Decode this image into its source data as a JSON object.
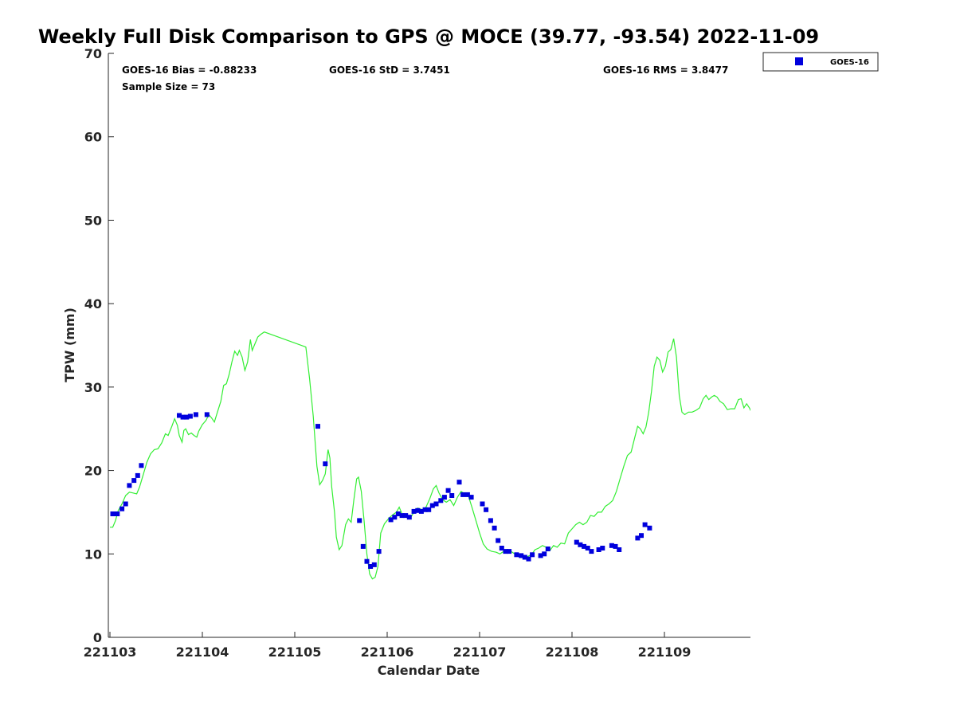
{
  "chart_data": {
    "type": "scatter",
    "title": "Weekly Full Disk Comparison to GPS @ MOCE (39.77, -93.54) 2022-11-09",
    "xlabel": "Calendar Date",
    "ylabel": "TPW (mm)",
    "x_tick_labels": [
      "221103",
      "221104",
      "221105",
      "221106",
      "221107",
      "221108",
      "221109"
    ],
    "y_tick_labels": [
      "0",
      "10",
      "20",
      "30",
      "40",
      "50",
      "60",
      "70"
    ],
    "y_ticks": [
      0,
      10,
      20,
      30,
      40,
      50,
      60,
      70
    ],
    "xlim_days": [
      0,
      6.95
    ],
    "ylim": [
      0,
      70
    ],
    "grid": false,
    "legend_position": "top-right outside",
    "stats": {
      "bias": "GOES-16 Bias = -0.88233",
      "std": "GOES-16 StD = 3.7451",
      "rms": "GOES-16 RMS = 3.8477",
      "sample": "Sample Size = 73"
    },
    "series": [
      {
        "name": "GOES-16",
        "kind": "scatter",
        "marker": "square",
        "color": "#0000dd",
        "points": [
          [
            0.03,
            14.8
          ],
          [
            0.08,
            14.8
          ],
          [
            0.13,
            15.4
          ],
          [
            0.17,
            16.0
          ],
          [
            0.21,
            18.2
          ],
          [
            0.26,
            18.8
          ],
          [
            0.3,
            19.4
          ],
          [
            0.34,
            20.6
          ],
          [
            0.75,
            26.6
          ],
          [
            0.79,
            26.4
          ],
          [
            0.83,
            26.4
          ],
          [
            0.87,
            26.5
          ],
          [
            0.93,
            26.7
          ],
          [
            1.05,
            26.7
          ],
          [
            2.25,
            25.3
          ],
          [
            2.33,
            20.8
          ],
          [
            2.7,
            14.0
          ],
          [
            2.74,
            10.9
          ],
          [
            2.78,
            9.1
          ],
          [
            2.82,
            8.5
          ],
          [
            2.86,
            8.7
          ],
          [
            2.91,
            10.3
          ],
          [
            3.04,
            14.1
          ],
          [
            3.08,
            14.4
          ],
          [
            3.12,
            14.8
          ],
          [
            3.16,
            14.6
          ],
          [
            3.2,
            14.6
          ],
          [
            3.24,
            14.4
          ],
          [
            3.29,
            15.1
          ],
          [
            3.33,
            15.2
          ],
          [
            3.37,
            15.1
          ],
          [
            3.41,
            15.3
          ],
          [
            3.45,
            15.3
          ],
          [
            3.49,
            15.8
          ],
          [
            3.53,
            16.0
          ],
          [
            3.58,
            16.4
          ],
          [
            3.62,
            16.8
          ],
          [
            3.66,
            17.6
          ],
          [
            3.7,
            17.0
          ],
          [
            3.78,
            18.6
          ],
          [
            3.82,
            17.1
          ],
          [
            3.87,
            17.1
          ],
          [
            3.91,
            16.8
          ],
          [
            4.03,
            16.0
          ],
          [
            4.07,
            15.3
          ],
          [
            4.12,
            14.0
          ],
          [
            4.16,
            13.1
          ],
          [
            4.2,
            11.6
          ],
          [
            4.24,
            10.7
          ],
          [
            4.28,
            10.3
          ],
          [
            4.32,
            10.3
          ],
          [
            4.4,
            9.9
          ],
          [
            4.45,
            9.8
          ],
          [
            4.49,
            9.6
          ],
          [
            4.53,
            9.4
          ],
          [
            4.57,
            9.9
          ],
          [
            4.66,
            9.8
          ],
          [
            4.7,
            10.0
          ],
          [
            4.74,
            10.6
          ],
          [
            5.05,
            11.4
          ],
          [
            5.09,
            11.1
          ],
          [
            5.13,
            10.9
          ],
          [
            5.17,
            10.7
          ],
          [
            5.21,
            10.3
          ],
          [
            5.29,
            10.5
          ],
          [
            5.33,
            10.7
          ],
          [
            5.43,
            11.0
          ],
          [
            5.47,
            10.9
          ],
          [
            5.51,
            10.5
          ],
          [
            5.71,
            11.9
          ],
          [
            5.75,
            12.2
          ],
          [
            5.79,
            13.5
          ],
          [
            5.84,
            13.1
          ]
        ]
      },
      {
        "name": "",
        "kind": "line",
        "color": "#33ee33",
        "points": [
          [
            0.0,
            13.2
          ],
          [
            0.03,
            13.2
          ],
          [
            0.06,
            14.0
          ],
          [
            0.09,
            15.2
          ],
          [
            0.13,
            16.0
          ],
          [
            0.17,
            17.0
          ],
          [
            0.21,
            17.4
          ],
          [
            0.25,
            17.3
          ],
          [
            0.29,
            17.2
          ],
          [
            0.32,
            18.0
          ],
          [
            0.36,
            19.5
          ],
          [
            0.4,
            21.0
          ],
          [
            0.44,
            22.0
          ],
          [
            0.48,
            22.5
          ],
          [
            0.52,
            22.6
          ],
          [
            0.56,
            23.3
          ],
          [
            0.6,
            24.4
          ],
          [
            0.63,
            24.2
          ],
          [
            0.67,
            25.3
          ],
          [
            0.7,
            26.2
          ],
          [
            0.73,
            25.4
          ],
          [
            0.75,
            24.2
          ],
          [
            0.78,
            23.4
          ],
          [
            0.8,
            24.8
          ],
          [
            0.82,
            25.0
          ],
          [
            0.85,
            24.3
          ],
          [
            0.88,
            24.5
          ],
          [
            0.91,
            24.2
          ],
          [
            0.94,
            24.0
          ],
          [
            0.96,
            24.7
          ],
          [
            1.0,
            25.5
          ],
          [
            1.04,
            26.0
          ],
          [
            1.07,
            26.7
          ],
          [
            1.1,
            26.3
          ],
          [
            1.13,
            25.8
          ],
          [
            1.16,
            26.9
          ],
          [
            1.2,
            28.3
          ],
          [
            1.23,
            30.2
          ],
          [
            1.26,
            30.4
          ],
          [
            1.29,
            31.5
          ],
          [
            1.32,
            33.0
          ],
          [
            1.35,
            34.3
          ],
          [
            1.38,
            33.8
          ],
          [
            1.4,
            34.4
          ],
          [
            1.43,
            33.6
          ],
          [
            1.46,
            32.0
          ],
          [
            1.49,
            33.0
          ],
          [
            1.52,
            35.7
          ],
          [
            1.54,
            34.4
          ],
          [
            1.57,
            35.2
          ],
          [
            1.6,
            36.0
          ],
          [
            1.63,
            36.3
          ],
          [
            1.67,
            36.6
          ],
          [
            2.12,
            34.8
          ],
          [
            2.16,
            31.0
          ],
          [
            2.2,
            26.5
          ],
          [
            2.24,
            20.5
          ],
          [
            2.27,
            18.3
          ],
          [
            2.3,
            18.8
          ],
          [
            2.33,
            19.6
          ],
          [
            2.36,
            22.5
          ],
          [
            2.38,
            21.5
          ],
          [
            2.4,
            18.0
          ],
          [
            2.43,
            15.0
          ],
          [
            2.45,
            12.0
          ],
          [
            2.48,
            10.5
          ],
          [
            2.51,
            11.0
          ],
          [
            2.55,
            13.5
          ],
          [
            2.58,
            14.2
          ],
          [
            2.61,
            13.8
          ],
          [
            2.64,
            16.5
          ],
          [
            2.67,
            19.0
          ],
          [
            2.69,
            19.2
          ],
          [
            2.72,
            17.5
          ],
          [
            2.75,
            14.0
          ],
          [
            2.78,
            10.0
          ],
          [
            2.81,
            7.6
          ],
          [
            2.84,
            7.0
          ],
          [
            2.87,
            7.2
          ],
          [
            2.9,
            8.5
          ],
          [
            2.93,
            12.5
          ],
          [
            2.97,
            13.6
          ],
          [
            3.02,
            14.3
          ],
          [
            3.06,
            14.7
          ],
          [
            3.1,
            15.0
          ],
          [
            3.13,
            15.6
          ],
          [
            3.16,
            14.8
          ],
          [
            3.2,
            14.4
          ],
          [
            3.25,
            14.3
          ],
          [
            3.29,
            15.0
          ],
          [
            3.33,
            15.5
          ],
          [
            3.38,
            15.3
          ],
          [
            3.42,
            15.6
          ],
          [
            3.46,
            16.6
          ],
          [
            3.5,
            17.8
          ],
          [
            3.53,
            18.2
          ],
          [
            3.56,
            17.3
          ],
          [
            3.6,
            16.5
          ],
          [
            3.64,
            16.2
          ],
          [
            3.68,
            16.5
          ],
          [
            3.72,
            15.8
          ],
          [
            3.76,
            16.8
          ],
          [
            3.8,
            17.5
          ],
          [
            3.84,
            17.2
          ],
          [
            3.88,
            16.9
          ],
          [
            3.92,
            15.5
          ],
          [
            3.96,
            14.0
          ],
          [
            4.0,
            12.5
          ],
          [
            4.04,
            11.2
          ],
          [
            4.08,
            10.6
          ],
          [
            4.13,
            10.3
          ],
          [
            4.18,
            10.2
          ],
          [
            4.22,
            10.0
          ],
          [
            4.26,
            10.3
          ],
          [
            4.3,
            10.5
          ],
          [
            4.34,
            10.3
          ],
          [
            4.38,
            10.0
          ],
          [
            4.44,
            9.6
          ],
          [
            4.5,
            9.6
          ],
          [
            4.56,
            9.9
          ],
          [
            4.6,
            10.5
          ],
          [
            4.64,
            10.7
          ],
          [
            4.68,
            11.0
          ],
          [
            4.72,
            10.8
          ],
          [
            4.76,
            10.4
          ],
          [
            4.8,
            11.0
          ],
          [
            4.84,
            10.8
          ],
          [
            4.88,
            11.3
          ],
          [
            4.92,
            11.2
          ],
          [
            4.96,
            12.5
          ],
          [
            5.0,
            13.0
          ],
          [
            5.04,
            13.5
          ],
          [
            5.08,
            13.8
          ],
          [
            5.12,
            13.5
          ],
          [
            5.16,
            13.8
          ],
          [
            5.2,
            14.6
          ],
          [
            5.24,
            14.5
          ],
          [
            5.28,
            15.0
          ],
          [
            5.32,
            15.0
          ],
          [
            5.36,
            15.7
          ],
          [
            5.4,
            16.0
          ],
          [
            5.44,
            16.4
          ],
          [
            5.48,
            17.5
          ],
          [
            5.52,
            19.0
          ],
          [
            5.56,
            20.5
          ],
          [
            5.6,
            21.8
          ],
          [
            5.64,
            22.2
          ],
          [
            5.68,
            24.0
          ],
          [
            5.71,
            25.3
          ],
          [
            5.74,
            25.0
          ],
          [
            5.77,
            24.4
          ],
          [
            5.8,
            25.2
          ],
          [
            5.83,
            27.0
          ],
          [
            5.86,
            29.5
          ],
          [
            5.89,
            32.5
          ],
          [
            5.92,
            33.6
          ],
          [
            5.95,
            33.2
          ],
          [
            5.98,
            31.8
          ],
          [
            6.01,
            32.5
          ],
          [
            6.04,
            34.2
          ],
          [
            6.07,
            34.5
          ],
          [
            6.1,
            35.8
          ],
          [
            6.13,
            33.6
          ],
          [
            6.16,
            29.0
          ],
          [
            6.19,
            27.0
          ],
          [
            6.22,
            26.7
          ],
          [
            6.26,
            27.0
          ],
          [
            6.3,
            27.0
          ],
          [
            6.34,
            27.2
          ],
          [
            6.38,
            27.5
          ],
          [
            6.42,
            28.6
          ],
          [
            6.45,
            29.0
          ],
          [
            6.48,
            28.5
          ],
          [
            6.51,
            28.8
          ],
          [
            6.54,
            29.0
          ],
          [
            6.57,
            28.8
          ],
          [
            6.6,
            28.3
          ],
          [
            6.64,
            28.0
          ],
          [
            6.68,
            27.3
          ],
          [
            6.72,
            27.4
          ],
          [
            6.76,
            27.4
          ],
          [
            6.8,
            28.5
          ],
          [
            6.83,
            28.6
          ],
          [
            6.86,
            27.5
          ],
          [
            6.89,
            28.0
          ],
          [
            6.92,
            27.5
          ],
          [
            6.95,
            26.8
          ]
        ]
      }
    ]
  }
}
